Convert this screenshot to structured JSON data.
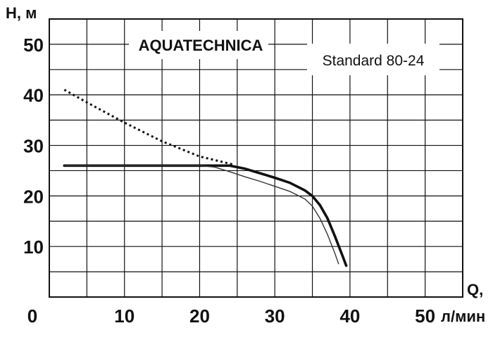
{
  "chart_data": {
    "type": "line",
    "brand": "AQUATECHNICA",
    "model": "Standard 80-24",
    "ylabel": "H, м",
    "xlabel_top": "Q,",
    "xlabel_bottom": "л/мин",
    "xlim": [
      0,
      55
    ],
    "ylim": [
      0,
      55
    ],
    "grid": true,
    "x_ticks": [
      "0",
      "10",
      "20",
      "30",
      "40",
      "50"
    ],
    "y_ticks": [
      "10",
      "20",
      "30",
      "40",
      "50"
    ],
    "series": [
      {
        "style": "thick-solid",
        "x": [
          2,
          10,
          20,
          24,
          26,
          28,
          30,
          32,
          34,
          35,
          36,
          37,
          38,
          39,
          39.5
        ],
        "y": [
          26,
          26,
          26,
          26,
          25.4,
          24.5,
          23.6,
          22.6,
          21.1,
          20,
          18.2,
          15.6,
          12,
          8.2,
          6.2
        ]
      },
      {
        "style": "thin-solid",
        "x": [
          2,
          10,
          20,
          22,
          24,
          26,
          28,
          30,
          32,
          34,
          35,
          36,
          37,
          38,
          38.5
        ],
        "y": [
          26,
          26,
          26,
          25.7,
          24.8,
          23.8,
          22.9,
          21.9,
          20.9,
          19.4,
          18,
          15.6,
          12.4,
          8.6,
          6.5
        ]
      },
      {
        "style": "dotted",
        "x": [
          2,
          5,
          10,
          15,
          20,
          24.5
        ],
        "y": [
          41,
          38.5,
          34.5,
          30.8,
          27.8,
          26.2
        ]
      }
    ]
  }
}
